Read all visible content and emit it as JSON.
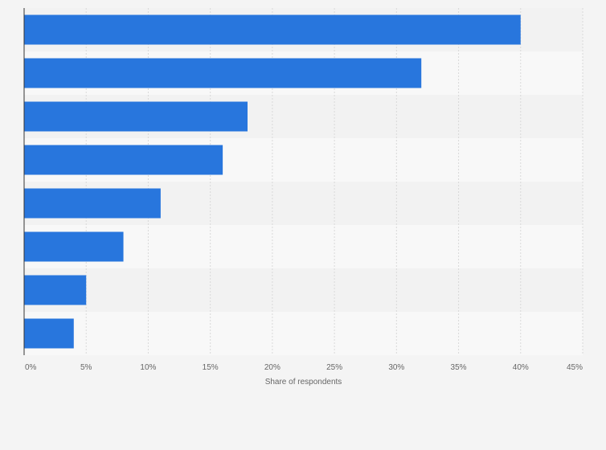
{
  "chart_data": {
    "type": "bar",
    "orientation": "horizontal",
    "categories": [
      "",
      "",
      "",
      "",
      "",
      "",
      "",
      ""
    ],
    "values": [
      40,
      32,
      18,
      16,
      11,
      8,
      5,
      4
    ],
    "xlabel": "Share of respondents",
    "ylabel": "",
    "xlim": [
      0,
      45
    ],
    "ticks": [
      0,
      5,
      10,
      15,
      20,
      25,
      30,
      35,
      40,
      45
    ],
    "tick_labels": [
      "0%",
      "5%",
      "10%",
      "15%",
      "20%",
      "25%",
      "30%",
      "35%",
      "40%",
      "45%"
    ],
    "grid": true,
    "legend": "none",
    "colors": {
      "bar": "#2876dd",
      "band_dark": "#f2f2f2",
      "band_light": "#f8f8f8",
      "grid": "#d9d9d9",
      "axis": "#333333",
      "text": "#666666"
    }
  }
}
